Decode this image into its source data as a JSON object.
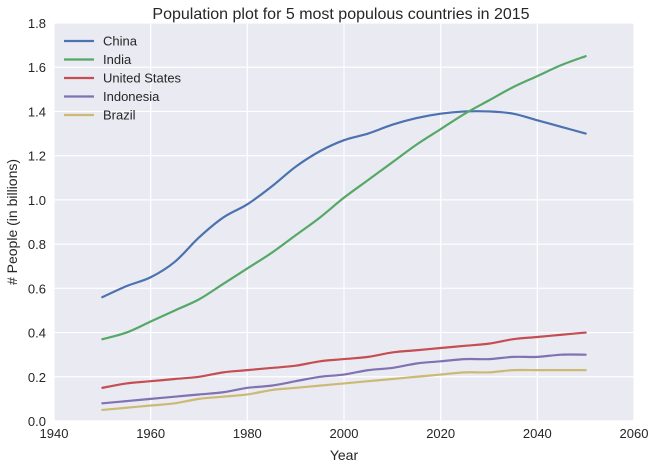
{
  "chart_data": {
    "type": "line",
    "title": "Population plot for 5 most populous countries in 2015",
    "xlabel": "Year",
    "ylabel": "# People (in billions)",
    "xlim": [
      1940,
      2060
    ],
    "ylim": [
      0.0,
      1.8
    ],
    "xticks": [
      1940,
      1960,
      1980,
      2000,
      2020,
      2040,
      2060
    ],
    "xtick_labels": [
      "1940",
      "1960",
      "1980",
      "2000",
      "2020",
      "2040",
      "2060"
    ],
    "yticks": [
      0.0,
      0.2,
      0.4,
      0.6,
      0.8,
      1.0,
      1.2,
      1.4,
      1.6,
      1.8
    ],
    "ytick_labels": [
      "0.0",
      "0.2",
      "0.4",
      "0.6",
      "0.8",
      "1.0",
      "1.2",
      "1.4",
      "1.6",
      "1.8"
    ],
    "grid": true,
    "legend_position": "top-left",
    "background_color": "#eaeaf2",
    "x": [
      1950,
      1955,
      1960,
      1965,
      1970,
      1975,
      1980,
      1985,
      1990,
      1995,
      2000,
      2005,
      2010,
      2015,
      2020,
      2025,
      2030,
      2035,
      2040,
      2045,
      2050
    ],
    "series": [
      {
        "name": "China",
        "color": "#4c72b0",
        "values": [
          0.56,
          0.61,
          0.65,
          0.72,
          0.83,
          0.92,
          0.98,
          1.06,
          1.15,
          1.22,
          1.27,
          1.3,
          1.34,
          1.37,
          1.39,
          1.4,
          1.4,
          1.39,
          1.36,
          1.33,
          1.3
        ]
      },
      {
        "name": "India",
        "color": "#55a868",
        "values": [
          0.37,
          0.4,
          0.45,
          0.5,
          0.55,
          0.62,
          0.69,
          0.76,
          0.84,
          0.92,
          1.01,
          1.09,
          1.17,
          1.25,
          1.32,
          1.39,
          1.45,
          1.51,
          1.56,
          1.61,
          1.65
        ]
      },
      {
        "name": "United States",
        "color": "#c44e52",
        "values": [
          0.15,
          0.17,
          0.18,
          0.19,
          0.2,
          0.22,
          0.23,
          0.24,
          0.25,
          0.27,
          0.28,
          0.29,
          0.31,
          0.32,
          0.33,
          0.34,
          0.35,
          0.37,
          0.38,
          0.39,
          0.4
        ]
      },
      {
        "name": "Indonesia",
        "color": "#8172b2",
        "values": [
          0.08,
          0.09,
          0.1,
          0.11,
          0.12,
          0.13,
          0.15,
          0.16,
          0.18,
          0.2,
          0.21,
          0.23,
          0.24,
          0.26,
          0.27,
          0.28,
          0.28,
          0.29,
          0.29,
          0.3,
          0.3
        ]
      },
      {
        "name": "Brazil",
        "color": "#ccb974",
        "values": [
          0.05,
          0.06,
          0.07,
          0.08,
          0.1,
          0.11,
          0.12,
          0.14,
          0.15,
          0.16,
          0.17,
          0.18,
          0.19,
          0.2,
          0.21,
          0.22,
          0.22,
          0.23,
          0.23,
          0.23,
          0.23
        ]
      }
    ]
  }
}
